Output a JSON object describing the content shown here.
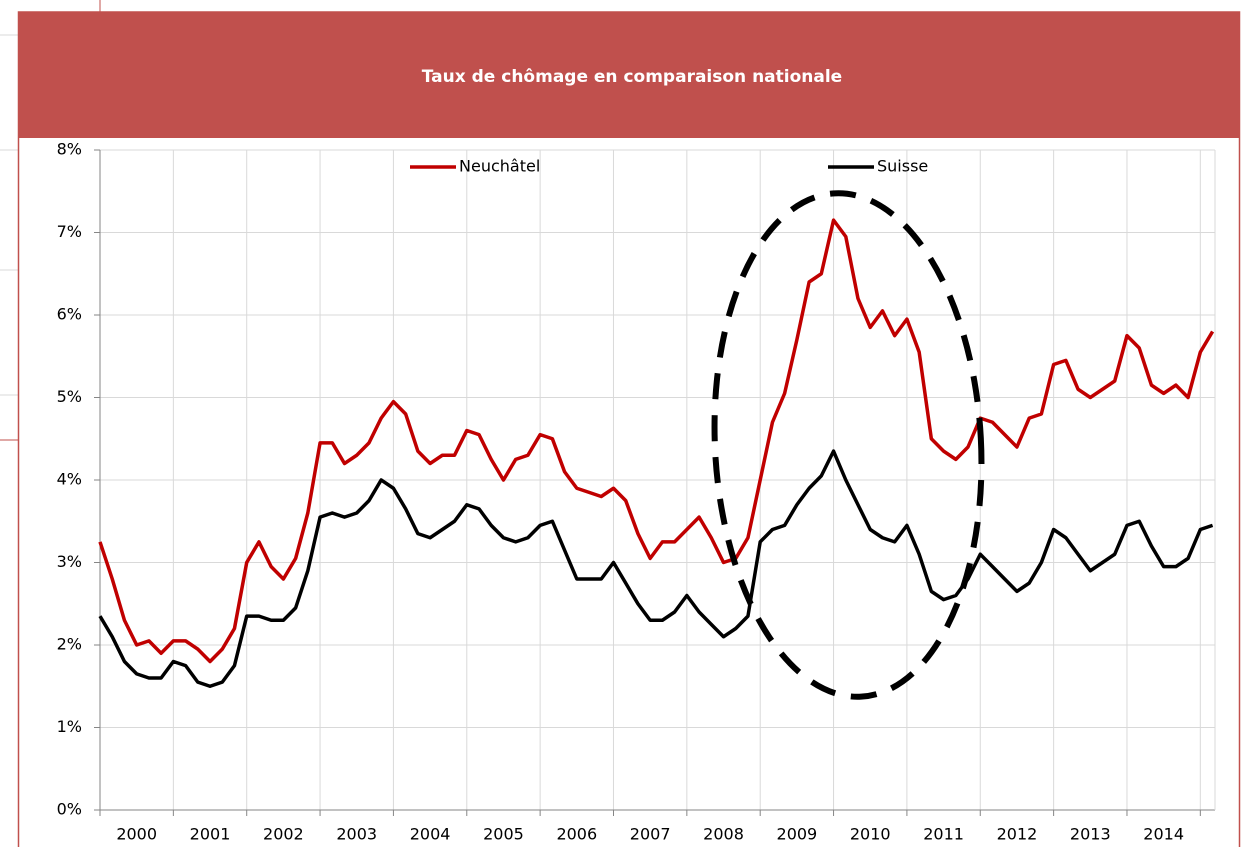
{
  "chart_data": {
    "type": "line",
    "title": "Taux de chômage en comparaison nationale",
    "x": [
      2000,
      2000.167,
      2000.333,
      2000.5,
      2000.667,
      2000.833,
      2001,
      2001.167,
      2001.333,
      2001.5,
      2001.667,
      2001.833,
      2002,
      2002.167,
      2002.333,
      2002.5,
      2002.667,
      2002.833,
      2003,
      2003.167,
      2003.333,
      2003.5,
      2003.667,
      2003.833,
      2004,
      2004.167,
      2004.333,
      2004.5,
      2004.667,
      2004.833,
      2005,
      2005.167,
      2005.333,
      2005.5,
      2005.667,
      2005.833,
      2006,
      2006.167,
      2006.333,
      2006.5,
      2006.667,
      2006.833,
      2007,
      2007.167,
      2007.333,
      2007.5,
      2007.667,
      2007.833,
      2008,
      2008.167,
      2008.333,
      2008.5,
      2008.667,
      2008.833,
      2009,
      2009.167,
      2009.333,
      2009.5,
      2009.667,
      2009.833,
      2010,
      2010.167,
      2010.333,
      2010.5,
      2010.667,
      2010.833,
      2011,
      2011.167,
      2011.333,
      2011.5,
      2011.667,
      2011.833,
      2012,
      2012.167,
      2012.333,
      2012.5,
      2012.667,
      2012.833,
      2013,
      2013.167,
      2013.333,
      2013.5,
      2013.667,
      2013.833,
      2014,
      2014.167,
      2014.333,
      2014.5,
      2014.667,
      2014.833,
      2015,
      2015.167
    ],
    "series": [
      {
        "name": "Neuchâtel",
        "color": "#c00000",
        "values": [
          3.25,
          2.8,
          2.3,
          2.0,
          2.05,
          1.9,
          2.05,
          2.05,
          1.95,
          1.8,
          1.95,
          2.2,
          3.0,
          3.25,
          2.95,
          2.8,
          3.05,
          3.6,
          4.45,
          4.45,
          4.2,
          4.3,
          4.45,
          4.75,
          4.95,
          4.8,
          4.35,
          4.2,
          4.3,
          4.3,
          4.6,
          4.55,
          4.25,
          4.0,
          4.25,
          4.3,
          4.55,
          4.5,
          4.1,
          3.9,
          3.85,
          3.8,
          3.9,
          3.75,
          3.35,
          3.05,
          3.25,
          3.25,
          3.4,
          3.55,
          3.3,
          3.0,
          3.05,
          3.3,
          4.0,
          4.7,
          5.05,
          5.7,
          6.4,
          6.5,
          7.15,
          6.95,
          6.2,
          5.85,
          6.05,
          5.75,
          5.95,
          5.55,
          4.5,
          4.35,
          4.25,
          4.4,
          4.75,
          4.7,
          4.55,
          4.4,
          4.75,
          4.8,
          5.4,
          5.45,
          5.1,
          5.0,
          5.1,
          5.2,
          5.75,
          5.6,
          5.15,
          5.05,
          5.15,
          5.0,
          5.55,
          5.8
        ]
      },
      {
        "name": "Suisse",
        "color": "#000000",
        "values": [
          2.35,
          2.1,
          1.8,
          1.65,
          1.6,
          1.6,
          1.8,
          1.75,
          1.55,
          1.5,
          1.55,
          1.75,
          2.35,
          2.35,
          2.3,
          2.3,
          2.45,
          2.9,
          3.55,
          3.6,
          3.55,
          3.6,
          3.75,
          4.0,
          3.9,
          3.65,
          3.35,
          3.3,
          3.4,
          3.5,
          3.7,
          3.65,
          3.45,
          3.3,
          3.25,
          3.3,
          3.45,
          3.5,
          3.15,
          2.8,
          2.8,
          2.8,
          3.0,
          2.75,
          2.5,
          2.3,
          2.3,
          2.4,
          2.6,
          2.4,
          2.25,
          2.1,
          2.2,
          2.35,
          3.25,
          3.4,
          3.45,
          3.7,
          3.9,
          4.05,
          4.35,
          4.0,
          3.7,
          3.4,
          3.3,
          3.25,
          3.45,
          3.1,
          2.65,
          2.55,
          2.6,
          2.8,
          3.1,
          2.95,
          2.8,
          2.65,
          2.75,
          3.0,
          3.4,
          3.3,
          3.1,
          2.9,
          3.0,
          3.1,
          3.45,
          3.5,
          3.2,
          2.95,
          2.95,
          3.05,
          3.4,
          3.45
        ]
      }
    ],
    "xlim": [
      2000,
      2015.2
    ],
    "xticks": [
      {
        "value": 2000.5,
        "label": "2000"
      },
      {
        "value": 2001.5,
        "label": "2001"
      },
      {
        "value": 2002.5,
        "label": "2002"
      },
      {
        "value": 2003.5,
        "label": "2003"
      },
      {
        "value": 2004.5,
        "label": "2004"
      },
      {
        "value": 2005.5,
        "label": "2005"
      },
      {
        "value": 2006.5,
        "label": "2006"
      },
      {
        "value": 2007.5,
        "label": "2007"
      },
      {
        "value": 2008.5,
        "label": "2008"
      },
      {
        "value": 2009.5,
        "label": "2009"
      },
      {
        "value": 2010.5,
        "label": "2010"
      },
      {
        "value": 2011.5,
        "label": "2011"
      },
      {
        "value": 2012.5,
        "label": "2012"
      },
      {
        "value": 2013.5,
        "label": "2013"
      },
      {
        "value": 2014.5,
        "label": "2014"
      }
    ],
    "xgrid": [
      2000,
      2001,
      2002,
      2003,
      2004,
      2005,
      2006,
      2007,
      2008,
      2009,
      2010,
      2011,
      2012,
      2013,
      2014,
      2015
    ],
    "ylim": [
      0,
      8
    ],
    "yticks": [
      {
        "value": 0,
        "label": "0%"
      },
      {
        "value": 1,
        "label": "1%"
      },
      {
        "value": 2,
        "label": "2%"
      },
      {
        "value": 3,
        "label": "3%"
      },
      {
        "value": 4,
        "label": "4%"
      },
      {
        "value": 5,
        "label": "5%"
      },
      {
        "value": 6,
        "label": "6%"
      },
      {
        "value": 7,
        "label": "7%"
      },
      {
        "value": 8,
        "label": "8%"
      }
    ],
    "grid": true,
    "legend": "top"
  }
}
